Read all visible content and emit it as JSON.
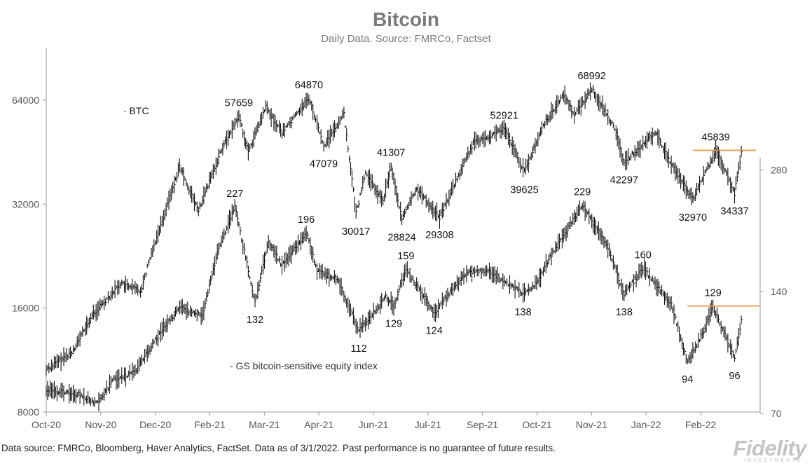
{
  "header": {
    "title": "Bitcoin",
    "subtitle": "Daily Data. Source: FMRCo, Factset"
  },
  "footer": {
    "note": "Data source: FMRCo, Bloomberg, Haver Analytics, FactSet. Data as of 3/1/2022. Past performance is no guarantee of future results.",
    "logo": "Fidelity",
    "logo_sub": "INVESTMENTS"
  },
  "colors": {
    "series": "#111111",
    "axis": "#9a9a9a",
    "resistance": "#e8913a"
  },
  "chart_data": {
    "type": "line",
    "style": "daily high-low bars",
    "grid": false,
    "x_axis": {
      "ticks": [
        "Oct-20",
        "Nov-20",
        "Dec-20",
        "Feb-21",
        "Mar-21",
        "Apr-21",
        "Jun-21",
        "Jul-21",
        "Sep-21",
        "Oct-21",
        "Nov-21",
        "Jan-22",
        "Feb-22"
      ],
      "range": [
        "2020-10-01",
        "2022-03-15"
      ]
    },
    "y_left": {
      "scale": "log",
      "range": [
        8000,
        90000
      ],
      "ticks": [
        "8000",
        "16000",
        "32000",
        "64000"
      ]
    },
    "y_right": {
      "scale": "log",
      "range": [
        70,
        300
      ],
      "ticks": [
        "70",
        "140",
        "280"
      ]
    },
    "series": [
      {
        "name": "BTC",
        "axis": "left",
        "legend_marker": "·",
        "points": [
          [
            "2020-10-01",
            10600
          ],
          [
            "2020-10-20",
            11900
          ],
          [
            "2020-11-05",
            15400
          ],
          [
            "2020-11-25",
            18800
          ],
          [
            "2020-12-10",
            17900
          ],
          [
            "2020-12-18",
            23000
          ],
          [
            "2021-01-08",
            41000
          ],
          [
            "2021-01-22",
            30500
          ],
          [
            "2021-02-08",
            46000
          ],
          [
            "2021-02-21",
            57659
          ],
          [
            "2021-02-28",
            45200
          ],
          [
            "2021-03-13",
            61000
          ],
          [
            "2021-03-25",
            51500
          ],
          [
            "2021-04-14",
            64870
          ],
          [
            "2021-04-25",
            47079
          ],
          [
            "2021-05-10",
            58500
          ],
          [
            "2021-05-19",
            30017
          ],
          [
            "2021-05-26",
            39500
          ],
          [
            "2021-06-08",
            32500
          ],
          [
            "2021-06-14",
            41307
          ],
          [
            "2021-06-22",
            28824
          ],
          [
            "2021-07-03",
            35500
          ],
          [
            "2021-07-20",
            29308
          ],
          [
            "2021-08-14",
            48000
          ],
          [
            "2021-09-06",
            52921
          ],
          [
            "2021-09-21",
            39625
          ],
          [
            "2021-10-06",
            55000
          ],
          [
            "2021-10-20",
            66500
          ],
          [
            "2021-10-28",
            58000
          ],
          [
            "2021-11-10",
            68992
          ],
          [
            "2021-11-26",
            54000
          ],
          [
            "2021-12-04",
            42297
          ],
          [
            "2021-12-27",
            51500
          ],
          [
            "2022-01-10",
            40500
          ],
          [
            "2022-01-24",
            32970
          ],
          [
            "2022-02-10",
            45839
          ],
          [
            "2022-02-24",
            34337
          ],
          [
            "2022-03-01",
            45000
          ]
        ]
      },
      {
        "name": "GS bitcoin-sensitive equity index",
        "axis": "right",
        "legend_marker": "-",
        "points": [
          [
            "2020-10-01",
            80
          ],
          [
            "2020-10-25",
            78
          ],
          [
            "2020-11-08",
            74
          ],
          [
            "2020-11-20",
            85
          ],
          [
            "2020-12-05",
            88
          ],
          [
            "2020-12-20",
            105
          ],
          [
            "2021-01-08",
            128
          ],
          [
            "2021-01-25",
            122
          ],
          [
            "2021-02-05",
            175
          ],
          [
            "2021-02-18",
            227
          ],
          [
            "2021-02-26",
            170
          ],
          [
            "2021-03-05",
            132
          ],
          [
            "2021-03-15",
            185
          ],
          [
            "2021-03-25",
            162
          ],
          [
            "2021-04-12",
            196
          ],
          [
            "2021-04-20",
            158
          ],
          [
            "2021-05-05",
            150
          ],
          [
            "2021-05-21",
            112
          ],
          [
            "2021-06-10",
            136
          ],
          [
            "2021-06-16",
            129
          ],
          [
            "2021-06-25",
            159
          ],
          [
            "2021-07-16",
            124
          ],
          [
            "2021-08-08",
            155
          ],
          [
            "2021-08-25",
            158
          ],
          [
            "2021-09-20",
            138
          ],
          [
            "2021-10-01",
            148
          ],
          [
            "2021-10-10",
            170
          ],
          [
            "2021-11-03",
            229
          ],
          [
            "2021-11-22",
            180
          ],
          [
            "2021-12-04",
            138
          ],
          [
            "2021-12-18",
            160
          ],
          [
            "2022-01-08",
            130
          ],
          [
            "2022-01-20",
            94
          ],
          [
            "2022-01-31",
            110
          ],
          [
            "2022-02-08",
            129
          ],
          [
            "2022-02-24",
            96
          ],
          [
            "2022-03-01",
            118
          ]
        ]
      }
    ],
    "annotations": {
      "btc": [
        {
          "text": "57659",
          "date": "2021-02-21",
          "value": 57659,
          "pos": "above"
        },
        {
          "text": "64870",
          "date": "2021-04-14",
          "value": 64870,
          "pos": "above"
        },
        {
          "text": "47079",
          "date": "2021-04-25",
          "value": 47079,
          "pos": "below"
        },
        {
          "text": "30017",
          "date": "2021-05-19",
          "value": 30017,
          "pos": "below"
        },
        {
          "text": "41307",
          "date": "2021-06-14",
          "value": 41307,
          "pos": "above"
        },
        {
          "text": "28824",
          "date": "2021-06-22",
          "value": 28824,
          "pos": "below"
        },
        {
          "text": "29308",
          "date": "2021-07-20",
          "value": 29308,
          "pos": "below"
        },
        {
          "text": "52921",
          "date": "2021-09-06",
          "value": 52921,
          "pos": "above"
        },
        {
          "text": "39625",
          "date": "2021-09-21",
          "value": 39625,
          "pos": "below"
        },
        {
          "text": "68992",
          "date": "2021-11-10",
          "value": 68992,
          "pos": "above"
        },
        {
          "text": "42297",
          "date": "2021-12-04",
          "value": 42297,
          "pos": "below"
        },
        {
          "text": "45839",
          "date": "2022-02-10",
          "value": 45839,
          "pos": "above"
        },
        {
          "text": "32970",
          "date": "2022-01-24",
          "value": 32970,
          "pos": "below"
        },
        {
          "text": "34337",
          "date": "2022-02-24",
          "value": 34337,
          "pos": "below"
        }
      ],
      "gs": [
        {
          "text": "227",
          "date": "2021-02-18",
          "value": 227,
          "pos": "above"
        },
        {
          "text": "132",
          "date": "2021-03-05",
          "value": 132,
          "pos": "below"
        },
        {
          "text": "196",
          "date": "2021-04-12",
          "value": 196,
          "pos": "above"
        },
        {
          "text": "112",
          "date": "2021-05-21",
          "value": 112,
          "pos": "below"
        },
        {
          "text": "129",
          "date": "2021-06-16",
          "value": 129,
          "pos": "below"
        },
        {
          "text": "159",
          "date": "2021-06-25",
          "value": 159,
          "pos": "above"
        },
        {
          "text": "124",
          "date": "2021-07-16",
          "value": 124,
          "pos": "below"
        },
        {
          "text": "138",
          "date": "2021-09-20",
          "value": 138,
          "pos": "below"
        },
        {
          "text": "229",
          "date": "2021-11-03",
          "value": 229,
          "pos": "above"
        },
        {
          "text": "138",
          "date": "2021-12-04",
          "value": 138,
          "pos": "below"
        },
        {
          "text": "160",
          "date": "2021-12-18",
          "value": 160,
          "pos": "above"
        },
        {
          "text": "129",
          "date": "2022-02-08",
          "value": 129,
          "pos": "above"
        },
        {
          "text": "94",
          "date": "2022-01-20",
          "value": 94,
          "pos": "below"
        },
        {
          "text": "96",
          "date": "2022-02-24",
          "value": 96,
          "pos": "below"
        }
      ]
    },
    "resistance_lines": [
      {
        "series": "BTC",
        "value": 45839,
        "from": "2022-01-24",
        "to": "2022-03-12"
      },
      {
        "series": "GS bitcoin-sensitive equity index",
        "value": 129,
        "from": "2022-01-20",
        "to": "2022-03-15"
      }
    ]
  }
}
